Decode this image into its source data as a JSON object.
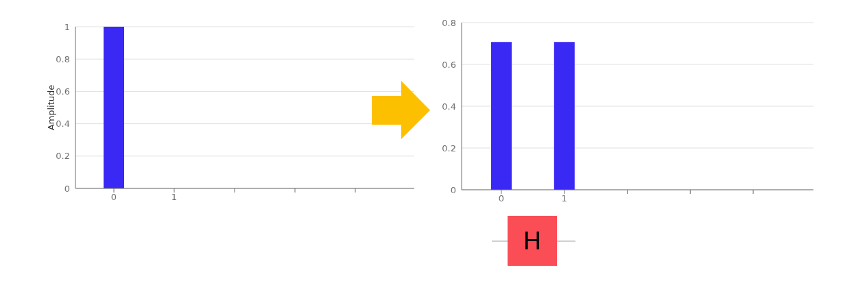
{
  "chart_data": [
    {
      "type": "bar",
      "ylabel": "Amplitude",
      "categories": [
        "0",
        "1",
        null,
        null,
        null
      ],
      "values": [
        1,
        0,
        null,
        null,
        null
      ],
      "color": "#3a28f5",
      "ylim": [
        0,
        1
      ],
      "yticks": [
        0,
        0.2,
        0.4,
        0.6,
        0.8,
        1
      ],
      "grid": "y"
    },
    {
      "type": "bar",
      "categories": [
        "0",
        "1",
        null,
        null,
        null
      ],
      "values": [
        0.707,
        0.707,
        null,
        null,
        null
      ],
      "color": "#3a28f5",
      "ylim": [
        0,
        0.8
      ],
      "yticks": [
        0,
        0.2,
        0.4,
        0.6,
        0.8
      ],
      "grid": "y",
      "annotations": [
        "H"
      ]
    }
  ]
}
